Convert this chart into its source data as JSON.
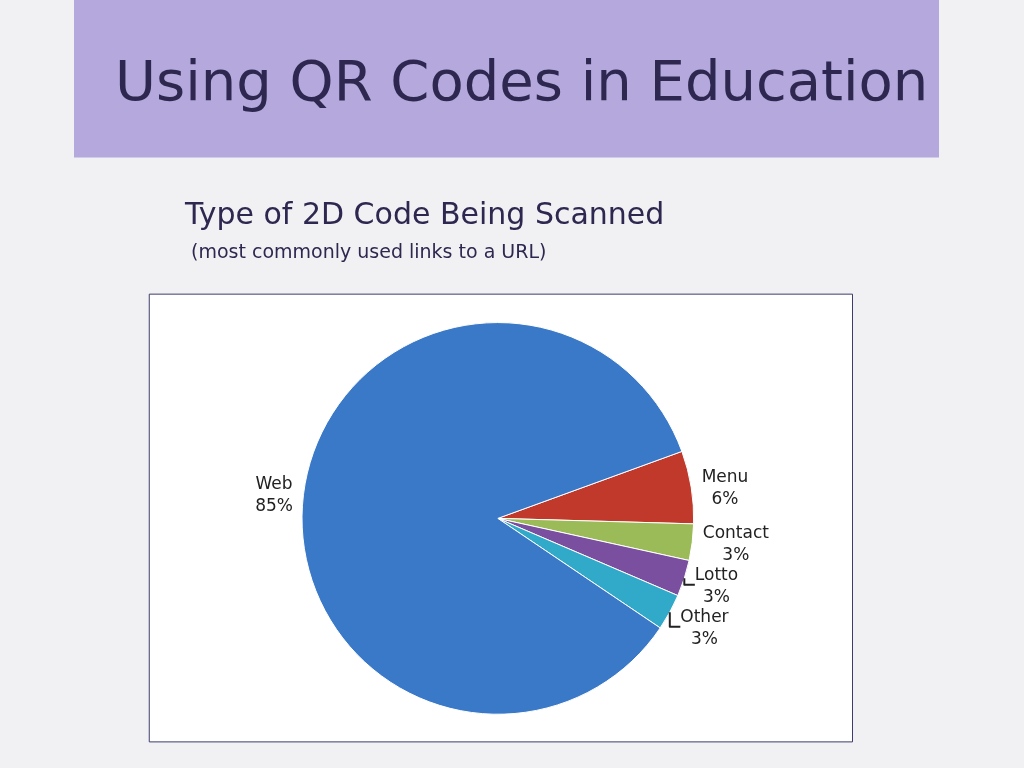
{
  "chart_data": {
    "type": "pie",
    "title": "Using QR Codes in Education",
    "subtitle": "Type of 2D Code Being Scanned",
    "annotations": [
      "(most commonly used links to a URL)"
    ],
    "categories": [
      "Menu",
      "Contact",
      "Lotto",
      "Other",
      "Web"
    ],
    "values": [
      6,
      3,
      3,
      3,
      85
    ],
    "value_labels": [
      "6%",
      "3%",
      "3%",
      "3%",
      "85%"
    ],
    "colors": [
      "#c0392b",
      "#9bbb59",
      "#7b4fa0",
      "#31a9c8",
      "#3a78c8"
    ],
    "legend": false
  }
}
